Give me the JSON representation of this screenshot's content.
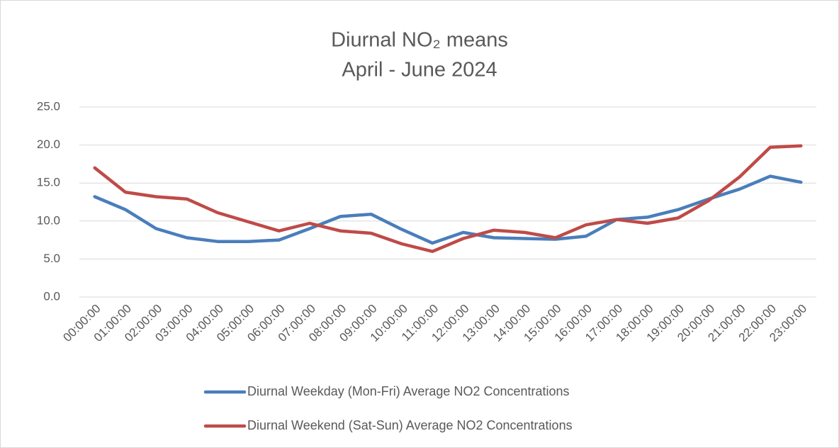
{
  "chart_data": {
    "type": "line",
    "title": "Diurnal NO₂ means",
    "subtitle": "April - June 2024",
    "categories": [
      "00:00:00",
      "01:00:00",
      "02:00:00",
      "03:00:00",
      "04:00:00",
      "05:00:00",
      "06:00:00",
      "07:00:00",
      "08:00:00",
      "09:00:00",
      "10:00:00",
      "11:00:00",
      "12:00:00",
      "13:00:00",
      "14:00:00",
      "15:00:00",
      "16:00:00",
      "17:00:00",
      "18:00:00",
      "19:00:00",
      "20:00:00",
      "21:00:00",
      "22:00:00",
      "23:00:00"
    ],
    "series": [
      {
        "name": "Diurnal Weekday (Mon-Fri) Average NO2 Concentrations",
        "color": "#4a7ebb",
        "values": [
          13.2,
          11.5,
          9.0,
          7.8,
          7.3,
          7.3,
          7.5,
          9.0,
          10.6,
          10.9,
          8.9,
          7.1,
          8.5,
          7.8,
          7.7,
          7.6,
          8.0,
          10.2,
          10.5,
          11.5,
          12.9,
          14.2,
          15.9,
          15.1
        ]
      },
      {
        "name": "Diurnal Weekend (Sat-Sun) Average NO2 Concentrations",
        "color": "#be4b48",
        "values": [
          17.0,
          13.8,
          13.2,
          12.9,
          11.1,
          9.9,
          8.7,
          9.7,
          8.7,
          8.4,
          7.0,
          6.0,
          7.7,
          8.8,
          8.5,
          7.8,
          9.5,
          10.2,
          9.7,
          10.4,
          12.7,
          15.8,
          19.7,
          19.9
        ]
      }
    ],
    "ylim": [
      0,
      25
    ],
    "yticks": [
      {
        "value": 0,
        "label": "0.0"
      },
      {
        "value": 5,
        "label": "5.0"
      },
      {
        "value": 10,
        "label": "10.0"
      },
      {
        "value": 15,
        "label": "15.0"
      },
      {
        "value": 20,
        "label": "20.0"
      },
      {
        "value": 25,
        "label": "25.0"
      }
    ],
    "grid": true,
    "legend": "bottom"
  }
}
